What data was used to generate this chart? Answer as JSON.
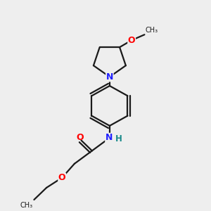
{
  "background_color": "#eeeeee",
  "bond_color": "#1a1a1a",
  "N_color": "#2020ff",
  "O_color": "#ff0000",
  "NH_color": "#1a8a8a",
  "line_width": 1.6,
  "font_size": 8.5,
  "fig_width": 3.0,
  "fig_height": 3.0,
  "dpi": 100,
  "xlim": [
    0,
    10
  ],
  "ylim": [
    0,
    10
  ]
}
